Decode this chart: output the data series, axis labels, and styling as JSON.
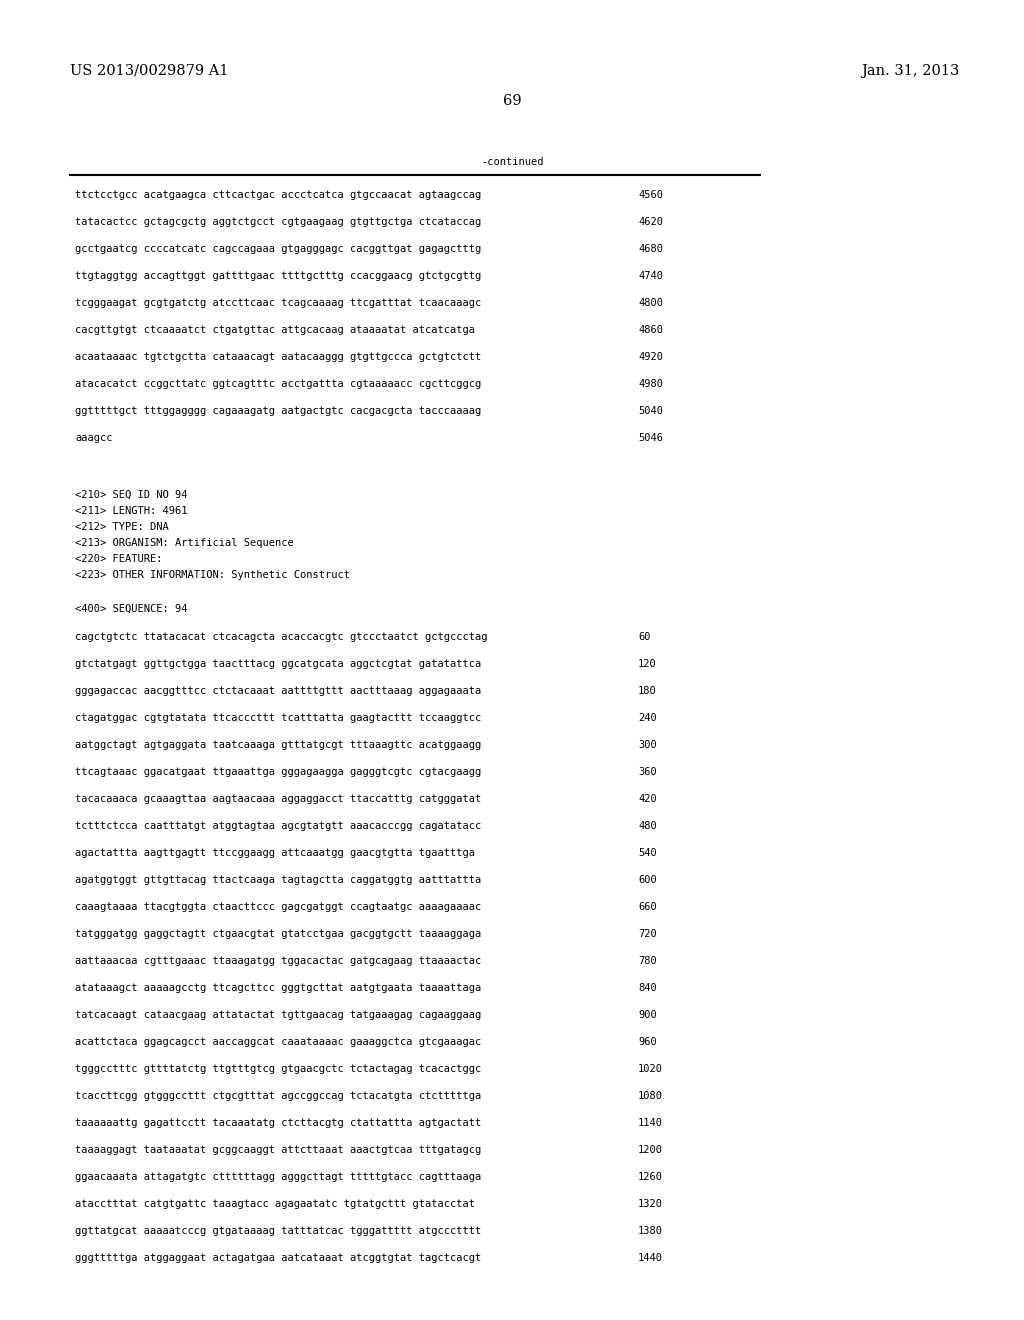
{
  "background_color": "#ffffff",
  "top_left_text": "US 2013/0029879 A1",
  "top_right_text": "Jan. 31, 2013",
  "page_number": "69",
  "continued_label": "-continued",
  "font_size_header": 10.5,
  "font_size_page": 10.5,
  "mono_size": 7.5,
  "sequence_lines_top": [
    [
      "ttctcctgcc acatgaagca cttcactgac accctcatca gtgccaacat agtaagccag",
      "4560"
    ],
    [
      "tatacactcc gctagcgctg aggtctgcct cgtgaagaag gtgttgctga ctcataccag",
      "4620"
    ],
    [
      "gcctgaatcg ccccatcatc cagccagaaa gtgagggagc cacggttgat gagagctttg",
      "4680"
    ],
    [
      "ttgtaggtgg accagttggt gattttgaac ttttgctttg ccacggaacg gtctgcgttg",
      "4740"
    ],
    [
      "tcgggaagat gcgtgatctg atccttcaac tcagcaaaag ttcgatttat tcaacaaagc",
      "4800"
    ],
    [
      "cacgttgtgt ctcaaaatct ctgatgttac attgcacaag ataaaatat atcatcatga",
      "4860"
    ],
    [
      "acaataaaac tgtctgctta cataaacagt aatacaaggg gtgttgccca gctgtctctt",
      "4920"
    ],
    [
      "atacacatct ccggcttatc ggtcagtttc acctgattta cgtaaaaacc cgcttcggcg",
      "4980"
    ],
    [
      "ggtttttgct tttggagggg cagaaagatg aatgactgtc cacgacgcta tacccaaaag",
      "5040"
    ],
    [
      "aaagcc",
      "5046"
    ]
  ],
  "metadata_lines": [
    "<210> SEQ ID NO 94",
    "<211> LENGTH: 4961",
    "<212> TYPE: DNA",
    "<213> ORGANISM: Artificial Sequence",
    "<220> FEATURE:",
    "<223> OTHER INFORMATION: Synthetic Construct"
  ],
  "sequence_label": "<400> SEQUENCE: 94",
  "sequence_lines_bottom": [
    [
      "cagctgtctc ttatacacat ctcacagcta acaccacgtc gtccctaatct gctgccctag",
      "60"
    ],
    [
      "gtctatgagt ggttgctgga taactttacg ggcatgcata aggctcgtat gatatattca",
      "120"
    ],
    [
      "gggagaccac aacggtttcc ctctacaaat aattttgttt aactttaaag aggagaaata",
      "180"
    ],
    [
      "ctagatggac cgtgtatata ttcacccttt tcatttatta gaagtacttt tccaaggtcc",
      "240"
    ],
    [
      "aatggctagt agtgaggata taatcaaaga gtttatgcgt tttaaagttc acatggaagg",
      "300"
    ],
    [
      "ttcagtaaac ggacatgaat ttgaaattga gggagaagga gagggtcgtc cgtacgaagg",
      "360"
    ],
    [
      "tacacaaaca gcaaagttaa aagtaacaaa aggaggacct ttaccatttg catgggatat",
      "420"
    ],
    [
      "tctttctcca caatttatgt atggtagtaa agcgtatgtt aaacacccgg cagatatacc",
      "480"
    ],
    [
      "agactattta aagttgagtt ttccggaagg attcaaatgg gaacgtgtta tgaatttga",
      "540"
    ],
    [
      "agatggtggt gttgttacag ttactcaaga tagtagctta caggatggtg aatttattta",
      "600"
    ],
    [
      "caaagtaaaa ttacgtggta ctaacttccc gagcgatggt ccagtaatgc aaaagaaaac",
      "660"
    ],
    [
      "tatgggatgg gaggctagtt ctgaacgtat gtatcctgaa gacggtgctt taaaaggaga",
      "720"
    ],
    [
      "aattaaacaa cgtttgaaac ttaaagatgg tggacactac gatgcagaag ttaaaactac",
      "780"
    ],
    [
      "atataaagct aaaaagcctg ttcagcttcc gggtgcttat aatgtgaata taaaattaga",
      "840"
    ],
    [
      "tatcacaagt cataacgaag attatactat tgttgaacag tatgaaagag cagaaggaag",
      "900"
    ],
    [
      "acattctaca ggagcagcct aaccaggcat caaataaaac gaaaggctca gtcgaaagac",
      "960"
    ],
    [
      "tgggcctttc gttttatctg ttgtttgtcg gtgaacgctc tctactagag tcacactggc",
      "1020"
    ],
    [
      "tcaccttcgg gtgggccttt ctgcgtttat agccggccag tctacatgta ctctttttga",
      "1080"
    ],
    [
      "taaaaaattg gagattcctt tacaaatatg ctcttacgtg ctattattta agtgactatt",
      "1140"
    ],
    [
      "taaaaggagt taataaatat gcggcaaggt attcttaaat aaactgtcaa tttgatagcg",
      "1200"
    ],
    [
      "ggaacaaata attagatgtc cttttttagg agggcttagt tttttgtacc cagtttaaga",
      "1260"
    ],
    [
      "atacctttat catgtgattc taaagtacc agagaatatc tgtatgcttt gtatacctat",
      "1320"
    ],
    [
      "ggttatgcat aaaaatcccg gtgataaaag tatttatcac tgggattttt atgccctttt",
      "1380"
    ],
    [
      "gggtttttga atggaggaat actagatgaa aatcataaat atcggtgtat tagctcacgt",
      "1440"
    ]
  ]
}
